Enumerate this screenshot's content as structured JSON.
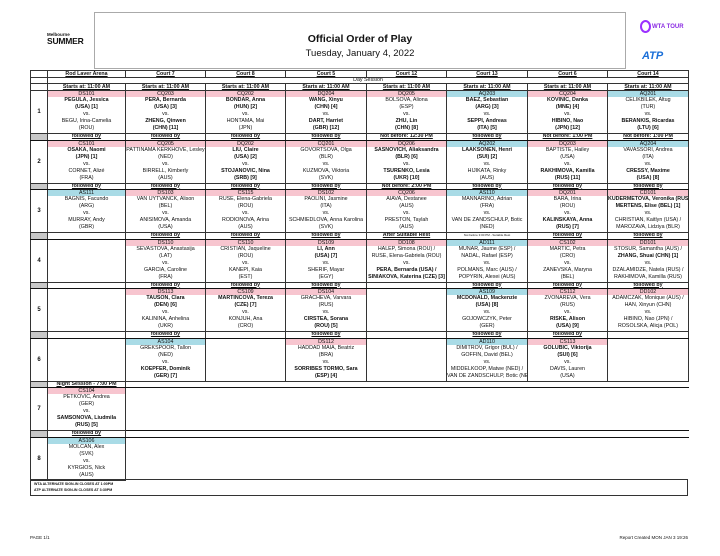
{
  "header": {
    "logo_line1": "Melbourne",
    "logo_line2": "SUMMER",
    "title": "Official Order of Play",
    "date": "Tuesday, January 4, 2022",
    "wta_logo": "WTA TOUR",
    "atp_logo": "ATP"
  },
  "courts": [
    "Rod Laver Arena",
    "Court 7",
    "Court 8",
    "Court 5",
    "Court 12",
    "Court 13",
    "Court 6",
    "Court 14"
  ],
  "day_session": "Day Session",
  "starts": "Starts at: 11:00 AM",
  "night_session": "Night Session - 7:00 PM",
  "colors": {
    "wta": "#f7c5cf",
    "atp": "#a9dbe6"
  },
  "rows": [
    {
      "num": "1",
      "matches": [
        {
          "code": "DS101",
          "tour": "wta",
          "p1": [
            "PEGULA, Jessica",
            "(USA) [1]"
          ],
          "p1b": [
            1,
            1
          ],
          "p2": [
            "BEGU, Irina-Camelia",
            "(ROU)"
          ],
          "p2b": [
            0,
            0
          ]
        },
        {
          "code": "CQ203",
          "tour": "wta",
          "p1": [
            "PERA, Bernarda",
            "(USA) [3]"
          ],
          "p1b": [
            1,
            1
          ],
          "p2": [
            "ZHENG, Qinwen",
            "(CHN) [11]"
          ],
          "p2b": [
            1,
            1
          ]
        },
        {
          "code": "CQ202",
          "tour": "wta",
          "p1": [
            "BONDAR, Anna",
            "(HUN) [2]"
          ],
          "p1b": [
            1,
            1
          ],
          "p2": [
            "HONTAMA, Mai",
            "(JPN)"
          ],
          "p2b": [
            0,
            0
          ]
        },
        {
          "code": "DQ204",
          "tour": "wta",
          "p1": [
            "WANG, Xinyu",
            "(CHN) [4]"
          ],
          "p1b": [
            1,
            1
          ],
          "p2": [
            "DART, Harriet",
            "(GBR) [12]"
          ],
          "p2b": [
            1,
            1
          ]
        },
        {
          "code": "DQ205",
          "tour": "wta",
          "p1": [
            "BOLSOVA, Aliona",
            "(ESP)"
          ],
          "p1b": [
            0,
            0
          ],
          "p2": [
            "ZHU, Lin",
            "(CHN) [8]"
          ],
          "p2b": [
            1,
            1
          ]
        },
        {
          "code": "AQ203",
          "tour": "atp",
          "p1": [
            "BAEZ, Sebastian",
            "(ARG) [3]"
          ],
          "p1b": [
            1,
            1
          ],
          "p2": [
            "SEPPI, Andreas",
            "(ITA) [5]"
          ],
          "p2b": [
            1,
            1
          ]
        },
        {
          "code": "CQ204",
          "tour": "wta",
          "p1": [
            "KOVINIC, Danka",
            "(MNE) [4]"
          ],
          "p1b": [
            1,
            1
          ],
          "p2": [
            "HIBINO, Nao",
            "(JPN) [12]"
          ],
          "p2b": [
            1,
            1
          ]
        },
        {
          "code": "AQ201",
          "tour": "atp",
          "p1": [
            "CELIKBILEK, Altug",
            "(TUR)"
          ],
          "p1b": [
            0,
            0
          ],
          "p2": [
            "BERANKIS, Ricardas",
            "(LTU) [6]"
          ],
          "p2b": [
            1,
            1
          ]
        }
      ],
      "after": [
        "followed by",
        "followed by",
        "followed by",
        "followed by",
        "Not before: 12:30 PM",
        "followed by",
        "Not before: 1:00 PM",
        "Not before: 1:00 PM"
      ]
    },
    {
      "num": "2",
      "matches": [
        {
          "code": "CS101",
          "tour": "wta",
          "p1": [
            "OSAKA, Naomi",
            "(JPN) [1]"
          ],
          "p1b": [
            1,
            1
          ],
          "p2": [
            "CORNET, Alizé",
            "(FRA)"
          ],
          "p2b": [
            0,
            0
          ]
        },
        {
          "code": "CQ205",
          "tour": "wta",
          "p1": [
            "PATTINAMA KERKHOVE, Lesley",
            "(NED)"
          ],
          "p1b": [
            0,
            0
          ],
          "p2": [
            "BIRRELL, Kimberly",
            "(AUS)"
          ],
          "p2b": [
            0,
            0
          ]
        },
        {
          "code": "DQ202",
          "tour": "wta",
          "p1": [
            "LIU, Claire",
            "(USA) [2]"
          ],
          "p1b": [
            1,
            1
          ],
          "p2": [
            "STOJANOVIC, Nina",
            "(SRB) [9]"
          ],
          "p2b": [
            1,
            1
          ]
        },
        {
          "code": "CQ201",
          "tour": "wta",
          "p1": [
            "GOVORTSOVA, Olga",
            "(BLR)"
          ],
          "p1b": [
            0,
            0
          ],
          "p2": [
            "KUZMOVA, Viktoria",
            "(SVK)"
          ],
          "p2b": [
            0,
            0
          ]
        },
        {
          "code": "DQ206",
          "tour": "wta",
          "p1": [
            "SASNOVICH, Aliaksandra",
            "(BLR) [6]"
          ],
          "p1b": [
            1,
            1
          ],
          "p2": [
            "TSURENKO, Lesia",
            "(UKR) [10]"
          ],
          "p2b": [
            1,
            1
          ]
        },
        {
          "code": "AQ202",
          "tour": "atp",
          "p1": [
            "LAAKSONEN, Henri",
            "(SUI) [2]"
          ],
          "p1b": [
            1,
            1
          ],
          "p2": [
            "HIJIKATA, Rinky",
            "(AUS)"
          ],
          "p2b": [
            0,
            0
          ]
        },
        {
          "code": "DQ203",
          "tour": "wta",
          "p1": [
            "BAPTISTE, Hailey",
            "(USA)"
          ],
          "p1b": [
            0,
            0
          ],
          "p2": [
            "RAKHIMOVA, Kamilla",
            "(RUS) [11]"
          ],
          "p2b": [
            1,
            1
          ]
        },
        {
          "code": "AQ204",
          "tour": "atp",
          "p1": [
            "VAVASSORI, Andrea",
            "(ITA)"
          ],
          "p1b": [
            0,
            0
          ],
          "p2": [
            "CRESSY, Maxime",
            "(USA) [8]"
          ],
          "p2b": [
            1,
            1
          ]
        }
      ],
      "after": [
        "followed by",
        "followed by",
        "followed by",
        "followed by",
        "Not before: 2:00 PM",
        "followed by",
        "followed by",
        "followed by"
      ]
    },
    {
      "num": "3",
      "matches": [
        {
          "code": "AS111",
          "tour": "atp",
          "p1": [
            "BAGNIS, Facundo",
            "(ARG)"
          ],
          "p1b": [
            0,
            0
          ],
          "p2": [
            "MURRAY, Andy",
            "(GBR)"
          ],
          "p2b": [
            0,
            0
          ]
        },
        {
          "code": "DS103",
          "tour": "wta",
          "p1": [
            "VAN UYTVANCK, Alison",
            "(BEL)"
          ],
          "p1b": [
            0,
            0
          ],
          "p2": [
            "ANISIMOVA, Amanda",
            "(USA)"
          ],
          "p2b": [
            0,
            0
          ]
        },
        {
          "code": "CS115",
          "tour": "wta",
          "p1": [
            "RUSE, Elena-Gabriela",
            "(ROU)"
          ],
          "p1b": [
            0,
            0
          ],
          "p2": [
            "RODIONOVA, Arina",
            "(AUS)"
          ],
          "p2b": [
            0,
            0
          ]
        },
        {
          "code": "DS102",
          "tour": "wta",
          "p1": [
            "PAOLINI, Jasmine",
            "(ITA)"
          ],
          "p1b": [
            0,
            0
          ],
          "p2": [
            "SCHMIEDLOVA, Anna Karolina",
            "(SVK)"
          ],
          "p2b": [
            0,
            0
          ]
        },
        {
          "code": "CQ206",
          "tour": "wta",
          "p1": [
            "AIAVA, Destanee",
            "(AUS)"
          ],
          "p1b": [
            0,
            0
          ],
          "p2": [
            "PRESTON, Taylah",
            "(AUS)"
          ],
          "p2b": [
            0,
            0
          ]
        },
        {
          "code": "AS110",
          "tour": "atp",
          "p1": [
            "MANNARINO, Adrian",
            "(FRA)"
          ],
          "p1b": [
            0,
            0
          ],
          "p2": [
            "VAN DE ZANDSCHULP, Botic",
            "(NED)"
          ],
          "p2b": [
            0,
            0
          ]
        },
        {
          "code": "DQ201",
          "tour": "wta",
          "p1": [
            "BARA, Irina",
            "(ROU)"
          ],
          "p1b": [
            0,
            0
          ],
          "p2": [
            "KALINSKAYA, Anna",
            "(RUS) [7]"
          ],
          "p2b": [
            1,
            1
          ]
        },
        {
          "code": "CD101",
          "tour": "wta",
          "p1": [
            "KUDERMETOVA, Veronika (RUS) /",
            "MERTENS, Elise (BEL) [1]"
          ],
          "p1b": [
            1,
            1
          ],
          "p2": [
            "CHRISTIAN, Kaitlyn (USA) /",
            "MAROZAVA, Lidziya (BLR)"
          ],
          "p2b": [
            0,
            0
          ]
        }
      ],
      "after": [
        "",
        "followed by",
        "followed by",
        "followed by",
        "After Suitable Rest",
        "Not before 3:00 PM - Suitable Rest",
        "followed by",
        "followed by"
      ]
    },
    {
      "num": "4",
      "matches": [
        null,
        {
          "code": "DS110",
          "tour": "wta",
          "p1": [
            "SEVASTOVA, Anastasija",
            "(LAT)"
          ],
          "p1b": [
            0,
            0
          ],
          "p2": [
            "GARCIA, Caroline",
            "(FRA)"
          ],
          "p2b": [
            0,
            0
          ]
        },
        {
          "code": "CS110",
          "tour": "wta",
          "p1": [
            "CRISTIAN, Jaqueline",
            "(ROU)"
          ],
          "p1b": [
            0,
            0
          ],
          "p2": [
            "KANEPI, Kaia",
            "(EST)"
          ],
          "p2b": [
            0,
            0
          ]
        },
        {
          "code": "DS109",
          "tour": "wta",
          "p1": [
            "LI, Ann",
            "(USA) [7]"
          ],
          "p1b": [
            1,
            1
          ],
          "p2": [
            "SHERIF, Mayar",
            "(EGY)"
          ],
          "p2b": [
            0,
            0
          ]
        },
        {
          "code": "DD108",
          "tour": "wta",
          "p1": [
            "HALEP, Simona (ROU) /",
            "RUSE, Elena-Gabriela (ROU)"
          ],
          "p1b": [
            0,
            0
          ],
          "p2": [
            "PERA, Bernarda (USA) /",
            "SINIAKOVA, Katerina (CZE) [3]"
          ],
          "p2b": [
            1,
            1
          ]
        },
        {
          "code": "AD111",
          "tour": "atp",
          "p1": [
            "MUNAR, Jaume (ESP) /",
            "NADAL, Rafael (ESP)"
          ],
          "p1b": [
            0,
            0
          ],
          "p2": [
            "POLMANS, Marc (AUS) /",
            "POPYRIN, Alexei (AUS)"
          ],
          "p2b": [
            0,
            0
          ]
        },
        {
          "code": "CS102",
          "tour": "wta",
          "p1": [
            "MARTIC, Petra",
            "(CRO)"
          ],
          "p1b": [
            0,
            0
          ],
          "p2": [
            "ZANEVSKA, Maryna",
            "(BEL)"
          ],
          "p2b": [
            0,
            0
          ]
        },
        {
          "code": "DD101",
          "tour": "wta",
          "p1": [
            "STOSUR, Samantha (AUS) /",
            "ZHANG, Shuai (CHN) [1]"
          ],
          "p1b": [
            0,
            1
          ],
          "p2": [
            "DZALAMIDZE, Natela (RUS) /",
            "RAKHIMOVA, Kamilla (RUS)"
          ],
          "p2b": [
            0,
            0
          ]
        }
      ],
      "after": [
        "",
        "followed by",
        "followed by",
        "followed by",
        "",
        "followed by",
        "followed by",
        "followed by"
      ]
    },
    {
      "num": "5",
      "matches": [
        null,
        {
          "code": "DS113",
          "tour": "wta",
          "p1": [
            "TAUSON, Clara",
            "(DEN) [6]"
          ],
          "p1b": [
            1,
            1
          ],
          "p2": [
            "KALININA, Anhelina",
            "(UKR)"
          ],
          "p2b": [
            0,
            0
          ]
        },
        {
          "code": "CS109",
          "tour": "wta",
          "p1": [
            "MARTINCOVA, Tereza",
            "(CZE) [7]"
          ],
          "p1b": [
            1,
            1
          ],
          "p2": [
            "KONJUH, Ana",
            "(CRO)"
          ],
          "p2b": [
            0,
            0
          ]
        },
        {
          "code": "DS104",
          "tour": "wta",
          "p1": [
            "GRACHEVA, Varvara",
            "(RUS)"
          ],
          "p1b": [
            0,
            0
          ],
          "p2": [
            "CIRSTEA, Sorana",
            "(ROU) [5]"
          ],
          "p2b": [
            1,
            1
          ]
        },
        null,
        {
          "code": "AS109",
          "tour": "atp",
          "p1": [
            "MCDONALD, Mackenzie",
            "(USA) [8]"
          ],
          "p1b": [
            1,
            1
          ],
          "p2": [
            "GOJOWCZYK, Peter",
            "(GER)"
          ],
          "p2b": [
            0,
            0
          ]
        },
        {
          "code": "CS112",
          "tour": "wta",
          "p1": [
            "ZVONAREVA, Vera",
            "(RUS)"
          ],
          "p1b": [
            0,
            0
          ],
          "p2": [
            "RISKE, Alison",
            "(USA) [9]"
          ],
          "p2b": [
            1,
            1
          ]
        },
        {
          "code": "DD102",
          "tour": "wta",
          "p1": [
            "ADAMCZAK, Monique (AUS) /",
            "HAN, Xinyun (CHN)"
          ],
          "p1b": [
            0,
            0
          ],
          "p2": [
            "HIBINO, Nao (JPN) /",
            "ROSOLSKA, Alicja (POL)"
          ],
          "p2b": [
            0,
            0
          ]
        }
      ],
      "after": [
        "",
        "followed by",
        "",
        "followed by",
        "",
        "followed by",
        "followed by",
        ""
      ]
    },
    {
      "num": "6",
      "matches": [
        null,
        {
          "code": "AS104",
          "tour": "atp",
          "p1": [
            "GREKSPOOR, Tallon",
            "(NED)"
          ],
          "p1b": [
            0,
            0
          ],
          "p2": [
            "KOEPFER, Dominik",
            "(GER) [7]"
          ],
          "p2b": [
            1,
            1
          ]
        },
        null,
        {
          "code": "DS112",
          "tour": "wta",
          "p1": [
            "HADDAD MAIA, Beatriz",
            "(BRA)"
          ],
          "p1b": [
            0,
            0
          ],
          "p2": [
            "SORRIBES TORMO, Sara",
            "(ESP) [4]"
          ],
          "p2b": [
            1,
            1
          ]
        },
        null,
        {
          "code": "AD110",
          "tour": "atp",
          "p1": [
            "DIMITROV, Grigor (BUL) /",
            "GOFFIN, David (BEL)"
          ],
          "p1b": [
            0,
            0
          ],
          "p2": [
            "MIDDELKOOP, Matwe (NED) /",
            "VAN DE ZANDSCHULP, Botic (NED)"
          ],
          "p2b": [
            0,
            0
          ]
        },
        {
          "code": "CS113",
          "tour": "wta",
          "p1": [
            "GOLUBIC, Viktorija",
            "(SUI) [6]"
          ],
          "p1b": [
            1,
            1
          ],
          "p2": [
            "DAVIS, Lauren",
            "(USA)"
          ],
          "p2b": [
            0,
            0
          ]
        },
        null
      ]
    },
    {
      "num": "7",
      "night": true,
      "matches": [
        {
          "code": "CS104",
          "tour": "wta",
          "p1": [
            "PETKOVIC, Andrea",
            "(GER)"
          ],
          "p1b": [
            0,
            0
          ],
          "p2": [
            "SAMSONOVA, Liudmila",
            "(RUS) [5]"
          ],
          "p2b": [
            1,
            1
          ]
        }
      ],
      "after": [
        "followed by"
      ]
    },
    {
      "num": "8",
      "night": true,
      "matches": [
        {
          "code": "AS106",
          "tour": "atp",
          "p1": [
            "MOLCAN, Alex",
            "(SVK)"
          ],
          "p1b": [
            0,
            0
          ],
          "p2": [
            "KYRGIOS, Nick",
            "(AUS)"
          ],
          "p2b": [
            0,
            0
          ]
        }
      ]
    }
  ],
  "vs": "vs.",
  "notes": [
    "WTA ALTERNATE SIGN-IN CLOSES AT 1:00PM",
    "ATP ALTERNATE SIGN-IN CLOSES AT 3:30PM"
  ],
  "footer": {
    "page": "PAGE 1/1",
    "report": "Report Created MON JAN  3 19:26"
  }
}
